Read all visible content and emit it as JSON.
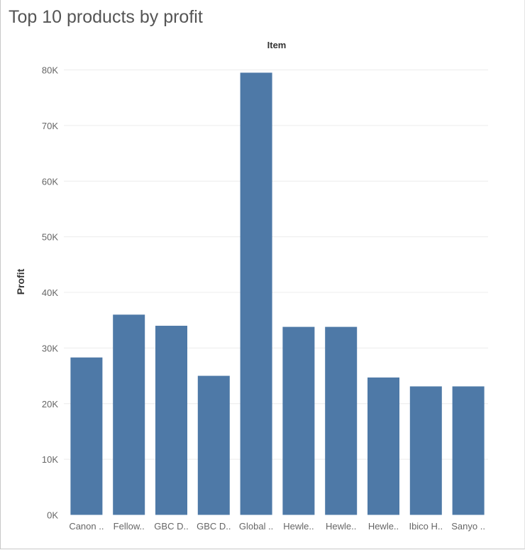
{
  "dashboard": {
    "title": "Top 10 products by profit"
  },
  "chart_data": {
    "type": "bar",
    "column_header": "Item",
    "ylabel": "Profit",
    "xlabel": "",
    "categories": [
      "Canon ..",
      "Fellow..",
      "GBC D..",
      "GBC D..",
      "Global ..",
      "Hewle..",
      "Hewle..",
      "Hewle..",
      "Ibico H..",
      "Sanyo .."
    ],
    "values": [
      28300,
      36000,
      34000,
      25000,
      79500,
      33800,
      33800,
      24700,
      23100,
      23100
    ],
    "ylim": [
      0,
      80000
    ],
    "yticks": [
      0,
      10000,
      20000,
      30000,
      40000,
      50000,
      60000,
      70000,
      80000
    ],
    "ytick_labels": [
      "0K",
      "10K",
      "20K",
      "30K",
      "40K",
      "50K",
      "60K",
      "70K",
      "80K"
    ],
    "grid": true,
    "bar_color": "#4e79a7",
    "legend": "none"
  }
}
